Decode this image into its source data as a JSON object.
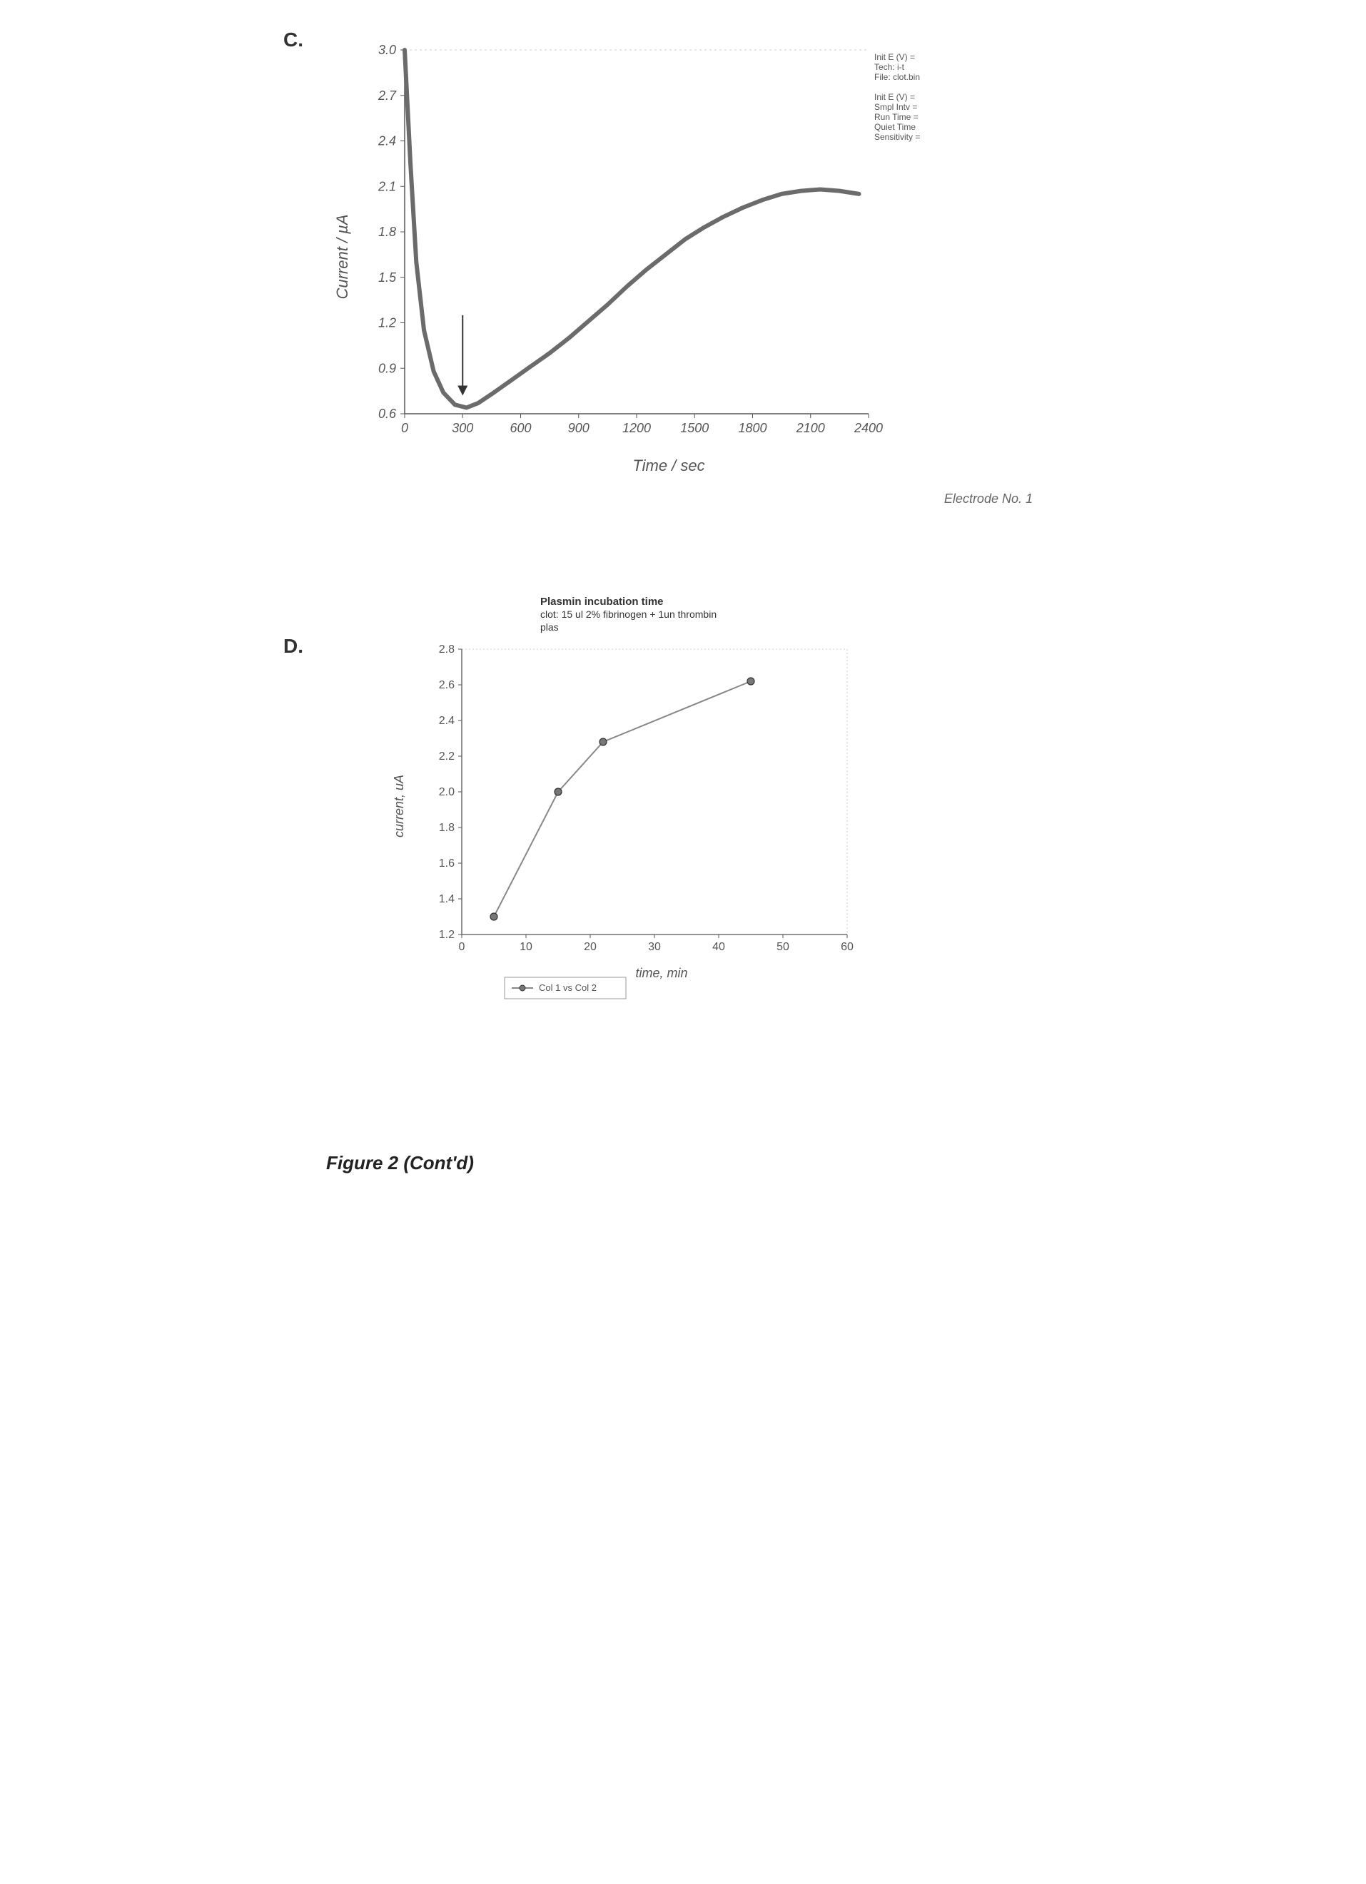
{
  "figure_caption": "Figure 2 (Cont'd)",
  "panelC": {
    "label": "C.",
    "type": "line",
    "x_axis_label": "Time / sec",
    "y_axis_label": "Current / µA",
    "footer_note": "Electrode No. 1",
    "xlim": [
      0,
      2400
    ],
    "ylim": [
      0.6,
      3.0
    ],
    "xticks": [
      0,
      300,
      600,
      900,
      1200,
      1500,
      1800,
      2100,
      2400
    ],
    "yticks": [
      0.6,
      0.9,
      1.2,
      1.5,
      1.8,
      2.1,
      2.4,
      2.7,
      3.0
    ],
    "ytick_labels": [
      "0.6",
      "0.9",
      "1.2",
      "1.5",
      "1.8",
      "2.1",
      "2.4",
      "2.7",
      "3.0"
    ],
    "arrow": {
      "x": 300,
      "y_from": 1.25,
      "y_to": 0.72
    },
    "line_color": "#6b6b6b",
    "line_width": 6,
    "grid_color": "#cfcfcf",
    "background_color": "#ffffff",
    "tick_fontsize": 18,
    "label_fontsize": 22,
    "top_dotted_border": true,
    "series": [
      {
        "x": 0,
        "y": 3.0
      },
      {
        "x": 30,
        "y": 2.25
      },
      {
        "x": 60,
        "y": 1.6
      },
      {
        "x": 100,
        "y": 1.15
      },
      {
        "x": 150,
        "y": 0.88
      },
      {
        "x": 200,
        "y": 0.74
      },
      {
        "x": 260,
        "y": 0.66
      },
      {
        "x": 320,
        "y": 0.64
      },
      {
        "x": 380,
        "y": 0.67
      },
      {
        "x": 450,
        "y": 0.73
      },
      {
        "x": 550,
        "y": 0.82
      },
      {
        "x": 650,
        "y": 0.91
      },
      {
        "x": 750,
        "y": 1.0
      },
      {
        "x": 850,
        "y": 1.1
      },
      {
        "x": 950,
        "y": 1.21
      },
      {
        "x": 1050,
        "y": 1.32
      },
      {
        "x": 1150,
        "y": 1.44
      },
      {
        "x": 1250,
        "y": 1.55
      },
      {
        "x": 1350,
        "y": 1.65
      },
      {
        "x": 1450,
        "y": 1.75
      },
      {
        "x": 1550,
        "y": 1.83
      },
      {
        "x": 1650,
        "y": 1.9
      },
      {
        "x": 1750,
        "y": 1.96
      },
      {
        "x": 1850,
        "y": 2.01
      },
      {
        "x": 1950,
        "y": 2.05
      },
      {
        "x": 2050,
        "y": 2.07
      },
      {
        "x": 2150,
        "y": 2.08
      },
      {
        "x": 2250,
        "y": 2.07
      },
      {
        "x": 2350,
        "y": 2.05
      }
    ],
    "info_lines": [
      "Init E (V) = ",
      "Tech: i-t",
      "File: clot.bin",
      "",
      "Init E (V) = ",
      "Smpl Intv = ",
      "Run Time = ",
      "Quiet Time",
      "Sensitivity ="
    ]
  },
  "panelD": {
    "label": "D.",
    "type": "line-scatter",
    "title_line1": "Plasmin incubation time",
    "title_line2": "clot: 15 ul 2% fibrinogen + 1un thrombin",
    "title_line3": "plas",
    "x_axis_label": "time, min",
    "y_axis_label": "current, uA",
    "legend_text": "Col 1 vs Col 2",
    "xlim": [
      0,
      60
    ],
    "ylim": [
      1.2,
      2.8
    ],
    "xticks": [
      0,
      10,
      20,
      30,
      40,
      50,
      60
    ],
    "yticks": [
      1.2,
      1.4,
      1.6,
      1.8,
      2.0,
      2.2,
      2.4,
      2.6,
      2.8
    ],
    "line_color": "#888888",
    "marker_fill": "#777777",
    "marker_stroke": "#333333",
    "marker_radius": 5,
    "line_width": 2,
    "grid_color": "#cfcfcf",
    "background_color": "#ffffff",
    "tick_fontsize": 14,
    "label_fontsize": 16,
    "title_fontsize": 15,
    "dotted_border": true,
    "points": [
      {
        "x": 5,
        "y": 1.3
      },
      {
        "x": 15,
        "y": 2.0
      },
      {
        "x": 22,
        "y": 2.28
      },
      {
        "x": 45,
        "y": 2.62
      }
    ]
  }
}
